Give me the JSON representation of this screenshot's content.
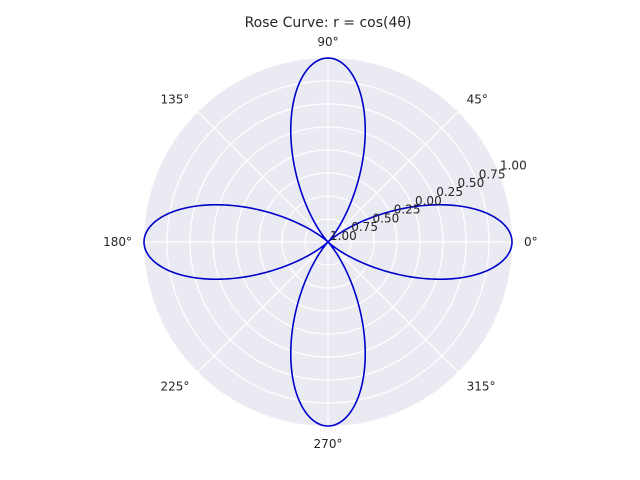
{
  "chart_data": {
    "type": "line",
    "projection": "polar",
    "title": "Rose Curve: r = cos(4θ)",
    "curve": {
      "equation": "r = cos(4θ)",
      "k": 4,
      "theta_range_deg": [
        0,
        360
      ],
      "samples": 1000,
      "color": "#0000cc"
    },
    "rlim": [
      -1.0,
      1.0
    ],
    "radial_ticks": [
      -1.0,
      -0.75,
      -0.5,
      -0.25,
      0.0,
      0.25,
      0.5,
      0.75,
      1.0
    ],
    "radial_tick_labels": [
      "1.00",
      "0.75",
      "0.50",
      "0.25",
      "0.00",
      "0.25",
      "0.50",
      "0.75",
      "1.00"
    ],
    "radial_label_angle_deg": 22.5,
    "angle_ticks_deg": [
      0,
      45,
      90,
      135,
      180,
      225,
      270,
      315
    ],
    "angle_tick_labels": [
      "0°",
      "45°",
      "90°",
      "135°",
      "180°",
      "225°",
      "270°",
      "315°"
    ],
    "grid": true,
    "background": "#eaeaf2",
    "grid_color": "#ffffff",
    "legend": "none"
  }
}
